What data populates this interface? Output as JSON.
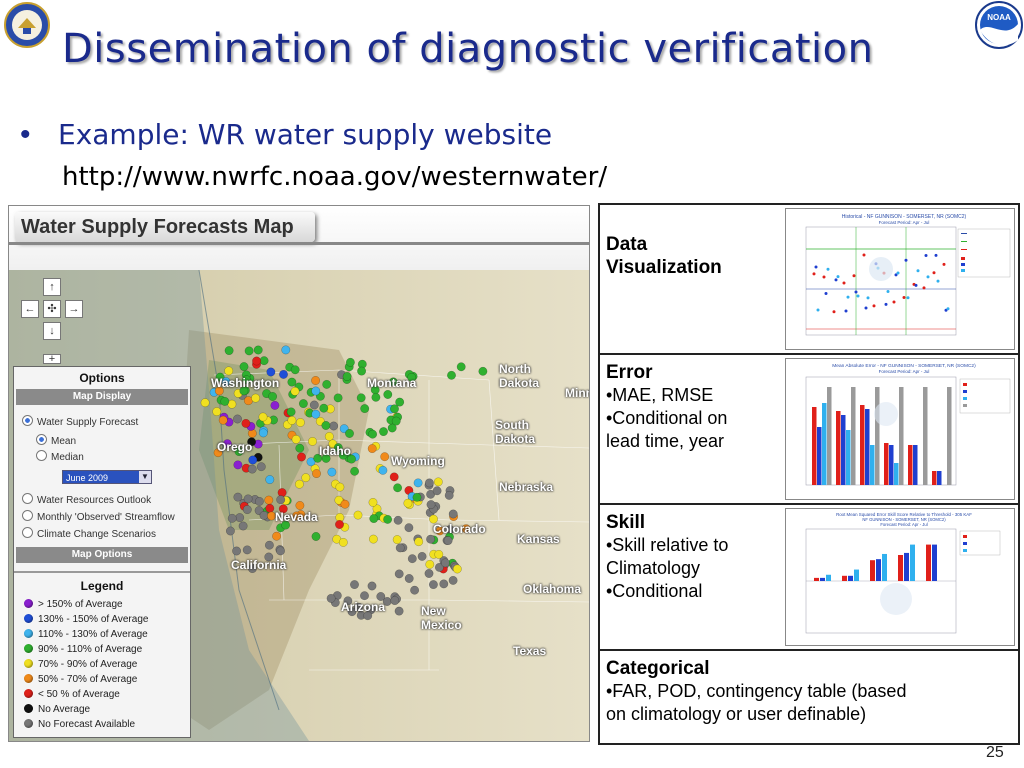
{
  "slide": {
    "title": "Dissemination of diagnostic verification",
    "bullet": "Example: WR water supply website",
    "url": "http://www.nwrfc.noaa.gov/westernwater/",
    "page_number": "25"
  },
  "logos": {
    "left": "department-of-commerce-seal",
    "right": "noaa-logo"
  },
  "map": {
    "header_title": "Water Supply Forecasts Map",
    "nav_icons": [
      "arrow-up-icon",
      "arrow-left-icon",
      "pan-center-icon",
      "arrow-right-icon",
      "arrow-down-icon",
      "zoom-in-icon"
    ],
    "nav_glyphs": {
      "up": "↑",
      "left": "←",
      "center": "✣",
      "right": "→",
      "down": "↓",
      "zoom": "+"
    },
    "state_labels": [
      "Washington",
      "Montana",
      "North Dakota",
      "South Dakota",
      "Wyoming",
      "Nebraska",
      "Nevada",
      "California",
      "Kansas",
      "Oklahoma",
      "Arizona",
      "New Mexico",
      "Texas",
      "Minn",
      "Orego",
      "Idaho",
      "Colorado"
    ],
    "options": {
      "heading": "Options",
      "map_display": "Map Display",
      "water_supply_forecast": "Water Supply Forecast",
      "mean": "Mean",
      "median": "Median",
      "month": "June 2009",
      "water_resources_outlook": "Water Resources Outlook",
      "monthly_observed": "Monthly 'Observed' Streamflow",
      "climate_change": "Climate Change Scenarios",
      "map_options": "Map Options"
    },
    "legend": {
      "heading": "Legend",
      "items": [
        {
          "label": "> 150% of Average",
          "color": "#8a1fd0"
        },
        {
          "label": "130% - 150% of Average",
          "color": "#1f4fd8"
        },
        {
          "label": "110% - 130% of Average",
          "color": "#3fb4ee"
        },
        {
          "label": "90% - 110% of Average",
          "color": "#2fb02f"
        },
        {
          "label": "70% - 90% of Average",
          "color": "#f0e020"
        },
        {
          "label": "50% - 70% of Average",
          "color": "#f08a1a"
        },
        {
          "label": "< 50 % of Average",
          "color": "#e0201a"
        },
        {
          "label": "No Average",
          "color": "#111111"
        },
        {
          "label": "No Forecast Available",
          "color": "#777777"
        }
      ]
    }
  },
  "table": {
    "rows": [
      {
        "title": "Data Visualization",
        "lines": []
      },
      {
        "title": "Error",
        "lines": [
          "•MAE, RMSE",
          "•Conditional on",
          "lead time, year"
        ]
      },
      {
        "title": "Skill",
        "lines": [
          "•Skill relative to",
          "Climatology",
          "•Conditional"
        ]
      },
      {
        "title": "Categorical",
        "lines": [
          "•FAR, POD, contingency table (based",
          "on climatology or user definable)"
        ]
      }
    ],
    "charts": {
      "visualization_title": "Historical - NF GUNNISON - SOMERSET, NR (SOMC2)",
      "visualization_subtitle": "Forecast Period: Apr - Jul",
      "error_title": "Mean Absolute Error - NF GUNNISON - SOMERSET, NR (SOMC2)",
      "error_subtitle": "Forecast Period: Apr - Jul",
      "skill_title": "Root Mean Squared Error Skill Score Relative to Threshold - 305 KAF",
      "skill_subtitle": "NF GUNNISON - SOMERSET, NR (SOMC2)",
      "skill_subtitle2": "Forecast Period: Apr - Jul"
    }
  },
  "colors": {
    "title": "#1a2a8c",
    "red": "#e0201a",
    "blue": "#1f3fd0",
    "cyan": "#2fb0ee",
    "gray": "#9a9a9a"
  }
}
